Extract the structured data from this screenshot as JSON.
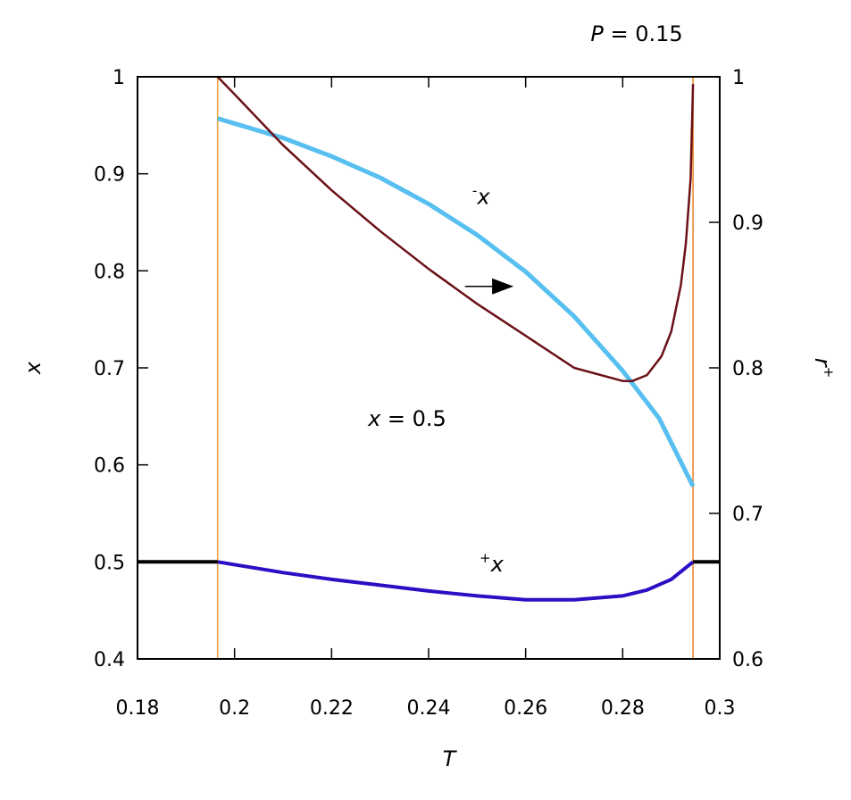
{
  "chart_data": {
    "type": "line",
    "title": "P = 0.15",
    "title_var": "P",
    "title_rest": " = 0.15",
    "xlabel": "T",
    "ylabel": "x",
    "y2label": "r",
    "y2label_sup": "+",
    "xlim": [
      0.18,
      0.3
    ],
    "ylim": [
      0.4,
      1.0
    ],
    "y2lim": [
      0.6,
      1.0
    ],
    "xticks": [
      "0.18",
      "0.2",
      "0.22",
      "0.24",
      "0.26",
      "0.28",
      "0.3"
    ],
    "yticks": [
      "0.4",
      "0.5",
      "0.6",
      "0.7",
      "0.8",
      "0.9",
      "1"
    ],
    "y2ticks": [
      "0.6",
      "0.7",
      "0.8",
      "0.9",
      "1"
    ],
    "grid": false,
    "vertical_lines": [
      {
        "x": 0.1965,
        "color": "#e69f3c"
      },
      {
        "x": 0.2945,
        "color": "#e67e22"
      }
    ],
    "series": [
      {
        "color": "#58c0f0",
        "width": 5,
        "axis": "left",
        "points": [
          [
            0.1965,
            0.957
          ],
          [
            0.21,
            0.937
          ],
          [
            0.22,
            0.918
          ],
          [
            0.23,
            0.896
          ],
          [
            0.24,
            0.869
          ],
          [
            0.25,
            0.837
          ],
          [
            0.26,
            0.799
          ],
          [
            0.27,
            0.753
          ],
          [
            0.28,
            0.697
          ],
          [
            0.2875,
            0.648
          ],
          [
            0.2945,
            0.578
          ]
        ]
      },
      {
        "color": "#6b1118",
        "width": 2.5,
        "axis": "right",
        "points": [
          [
            0.1965,
            1.0
          ],
          [
            0.2,
            0.988
          ],
          [
            0.21,
            0.953
          ],
          [
            0.22,
            0.922
          ],
          [
            0.23,
            0.894
          ],
          [
            0.24,
            0.868
          ],
          [
            0.25,
            0.844
          ],
          [
            0.26,
            0.822
          ],
          [
            0.27,
            0.8
          ],
          [
            0.28,
            0.791
          ],
          [
            0.282,
            0.791
          ],
          [
            0.285,
            0.795
          ],
          [
            0.288,
            0.808
          ],
          [
            0.29,
            0.825
          ],
          [
            0.292,
            0.857
          ],
          [
            0.293,
            0.885
          ],
          [
            0.294,
            0.93
          ],
          [
            0.2945,
            0.995
          ]
        ]
      },
      {
        "color": "#2a0fc4",
        "width": 4,
        "axis": "left",
        "points": [
          [
            0.1965,
            0.5
          ],
          [
            0.21,
            0.489
          ],
          [
            0.22,
            0.482
          ],
          [
            0.23,
            0.476
          ],
          [
            0.24,
            0.47
          ],
          [
            0.25,
            0.465
          ],
          [
            0.26,
            0.461
          ],
          [
            0.27,
            0.461
          ],
          [
            0.28,
            0.465
          ],
          [
            0.285,
            0.471
          ],
          [
            0.29,
            0.482
          ],
          [
            0.2945,
            0.5
          ]
        ]
      },
      {
        "color": "#000000",
        "width": 4,
        "axis": "left",
        "points": [
          [
            0.18,
            0.5
          ],
          [
            0.1965,
            0.5
          ]
        ]
      },
      {
        "color": "#000000",
        "width": 4,
        "axis": "left",
        "points": [
          [
            0.2945,
            0.5
          ],
          [
            0.3,
            0.5
          ]
        ]
      }
    ],
    "annotations": [
      {
        "sup": "-",
        "text": "x",
        "x": 0.249,
        "y": 0.869
      },
      {
        "sup": "+",
        "text": "x",
        "x": 0.2505,
        "y": 0.49
      },
      {
        "text": "x",
        "rest": " = 0.5",
        "x": 0.2275,
        "y": 0.64
      }
    ],
    "arrow": {
      "from": [
        0.2475,
        0.784
      ],
      "to": [
        0.2575,
        0.784
      ]
    }
  }
}
